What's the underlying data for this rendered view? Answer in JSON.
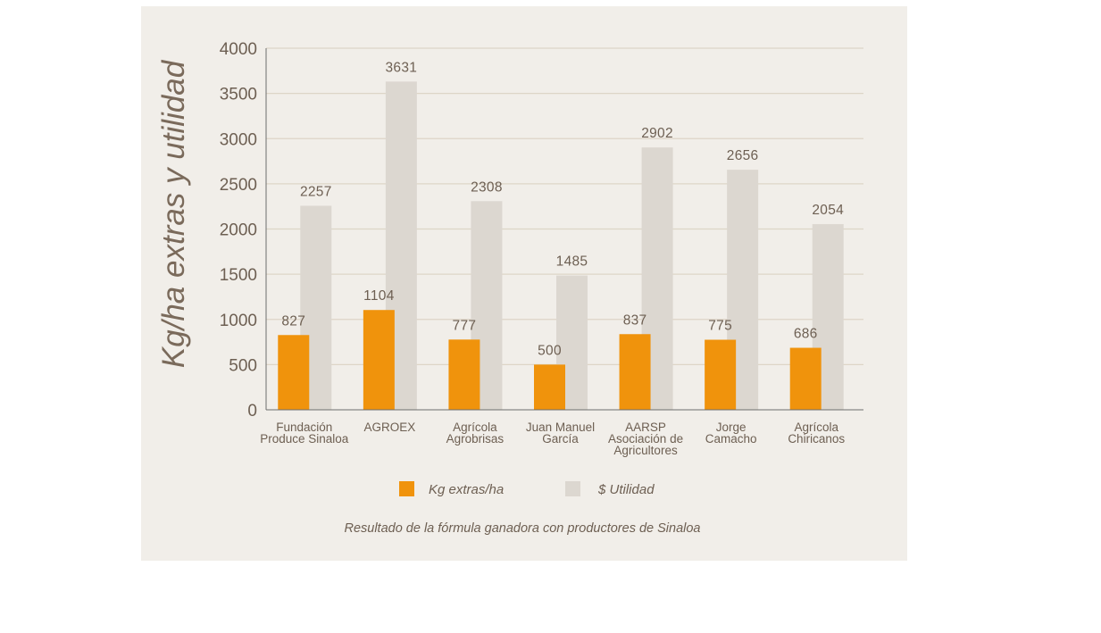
{
  "chart_data": {
    "type": "bar",
    "title": "",
    "caption": "Resultado de la fórmula ganadora con productores de Sinaloa",
    "ylabel": "Kg/ha extras y utilidad",
    "xlabel": "",
    "ylim": [
      0,
      4000
    ],
    "yticks": [
      0,
      500,
      1000,
      1500,
      2000,
      2500,
      3000,
      3500,
      4000
    ],
    "grid": true,
    "legend_position": "bottom",
    "categories": [
      [
        "Fundación",
        "Produce Sinaloa"
      ],
      [
        "AGROEX"
      ],
      [
        "Agrícola",
        "Agrobrisas"
      ],
      [
        "Juan Manuel",
        "García"
      ],
      [
        "AARSP",
        "Asociación de",
        "Agricultores"
      ],
      [
        "Jorge",
        "Camacho"
      ],
      [
        "Agrícola",
        "Chiricanos"
      ]
    ],
    "series": [
      {
        "name": "Kg extras/ha",
        "color": "#f0930c",
        "values": [
          827,
          1104,
          777,
          500,
          837,
          775,
          686
        ]
      },
      {
        "name": "$ Utilidad",
        "color": "#dcd7d0",
        "values": [
          2257,
          3631,
          2308,
          1485,
          2902,
          2656,
          2054
        ]
      }
    ]
  }
}
